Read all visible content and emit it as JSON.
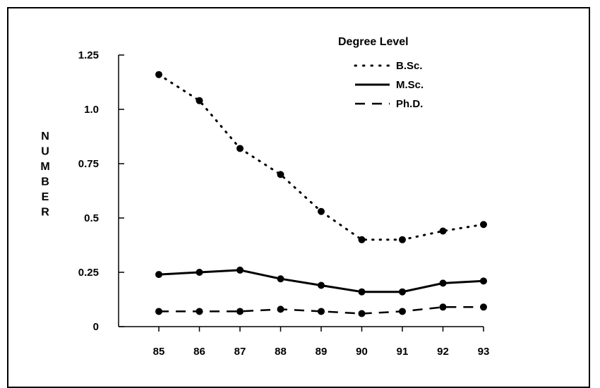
{
  "chart_data": {
    "type": "line",
    "categories": [
      "85",
      "86",
      "87",
      "88",
      "89",
      "90",
      "91",
      "92",
      "93"
    ],
    "ylabel": "NUMBER",
    "ylim": [
      0,
      1.25
    ],
    "yticks": [
      "0",
      "0.25",
      "0.5",
      "0.75",
      "1.0",
      "1.25"
    ],
    "legend": {
      "title": "Degree Level",
      "placement": "top-right"
    },
    "series": [
      {
        "name": "B.Sc.",
        "style": "dotted",
        "values": [
          1.16,
          1.04,
          0.82,
          0.7,
          0.53,
          0.4,
          0.4,
          0.44,
          0.47
        ]
      },
      {
        "name": "M.Sc.",
        "style": "solid",
        "values": [
          0.24,
          0.25,
          0.26,
          0.22,
          0.19,
          0.16,
          0.16,
          0.2,
          0.21
        ]
      },
      {
        "name": "Ph.D.",
        "style": "dashed",
        "values": [
          0.07,
          0.07,
          0.07,
          0.08,
          0.07,
          0.06,
          0.07,
          0.09,
          0.09
        ]
      }
    ],
    "grid": false
  }
}
